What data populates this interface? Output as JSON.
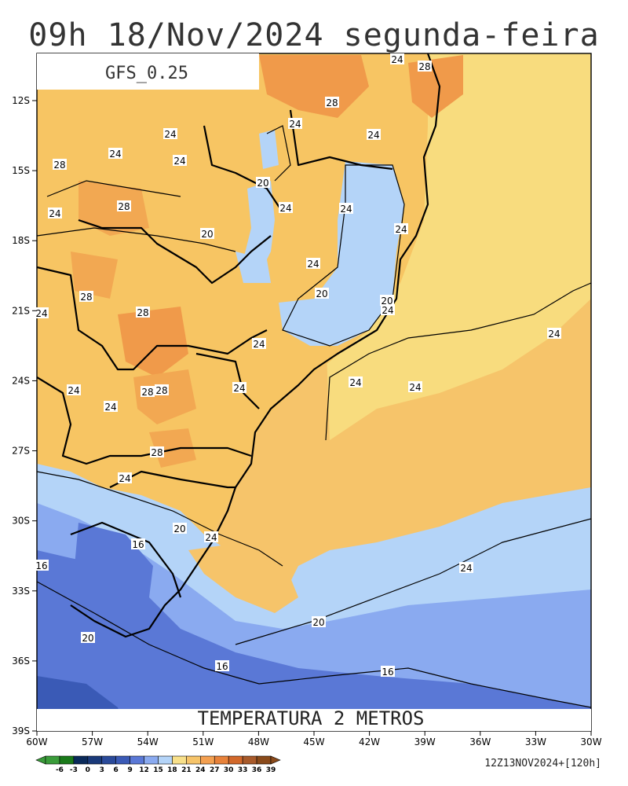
{
  "title": "09h 18/Nov/2024 segunda-feira",
  "model_label": "GFS_0.25",
  "variable_label": "TEMPERATURA 2 METROS",
  "run_info": "12Z13NOV2024+[120h]",
  "lat_ticks": [
    "12S",
    "15S",
    "18S",
    "21S",
    "24S",
    "27S",
    "30S",
    "33S",
    "36S",
    "39S"
  ],
  "lon_ticks": [
    "60W",
    "57W",
    "54W",
    "51W",
    "48W",
    "45W",
    "42W",
    "39W",
    "36W",
    "33W",
    "30W"
  ],
  "colorbar": {
    "labels": [
      "-6",
      "-3",
      "0",
      "3",
      "6",
      "9",
      "12",
      "15",
      "18",
      "21",
      "24",
      "27",
      "30",
      "33",
      "36",
      "39"
    ],
    "colors": [
      "#3a9c3a",
      "#1a7a1a",
      "#0a2a5a",
      "#1a3a7a",
      "#2a4a9a",
      "#3a5ab6",
      "#5a78d6",
      "#8aaaf0",
      "#b4d4f8",
      "#f8e08a",
      "#f6c46a",
      "#f4a050",
      "#e8823a",
      "#d2682a",
      "#a85a2a",
      "#8a4a1a"
    ]
  },
  "contour_labels": [
    "24",
    "28",
    "28",
    "24",
    "24",
    "24",
    "24",
    "24",
    "28",
    "28",
    "24",
    "24",
    "20",
    "20",
    "24",
    "24",
    "24",
    "20",
    "28",
    "24",
    "28",
    "20",
    "24",
    "24",
    "24",
    "24",
    "24",
    "24",
    "24",
    "28",
    "28",
    "24",
    "28",
    "24",
    "24",
    "20",
    "24",
    "16",
    "16",
    "20",
    "20",
    "16",
    "16",
    "16"
  ]
}
